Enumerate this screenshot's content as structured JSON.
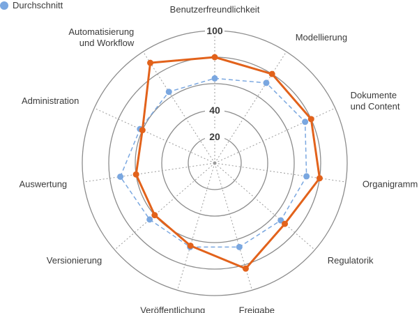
{
  "chart_data": {
    "type": "radar",
    "title": "",
    "axes": [
      "Benutzerfreundlichkeit",
      "Modellierung",
      "Dokumente\nund Content",
      "Organigramm",
      "Regulatorik",
      "Freigabe",
      "Veröffentlichung",
      "Versionierung",
      "Auswertung",
      "Administration",
      "Automatisierung\nund Workflow"
    ],
    "ticks": [
      20,
      40,
      100
    ],
    "rmax": 100,
    "grid": true,
    "legend": {
      "position": "top-left",
      "entries": [
        "Durchschnitt"
      ]
    },
    "series": [
      {
        "name": "",
        "color": "#e2621b",
        "style": "solid-line",
        "values": [
          80,
          80,
          80,
          80,
          70,
          83,
          65,
          60,
          60,
          60,
          90
        ]
      },
      {
        "name": "Durchschnitt",
        "color": "#7aa7e0",
        "style": "dashed-line-with-points",
        "values": [
          64,
          72,
          75,
          70,
          66,
          66,
          66,
          65,
          72,
          62,
          64
        ]
      }
    ]
  }
}
